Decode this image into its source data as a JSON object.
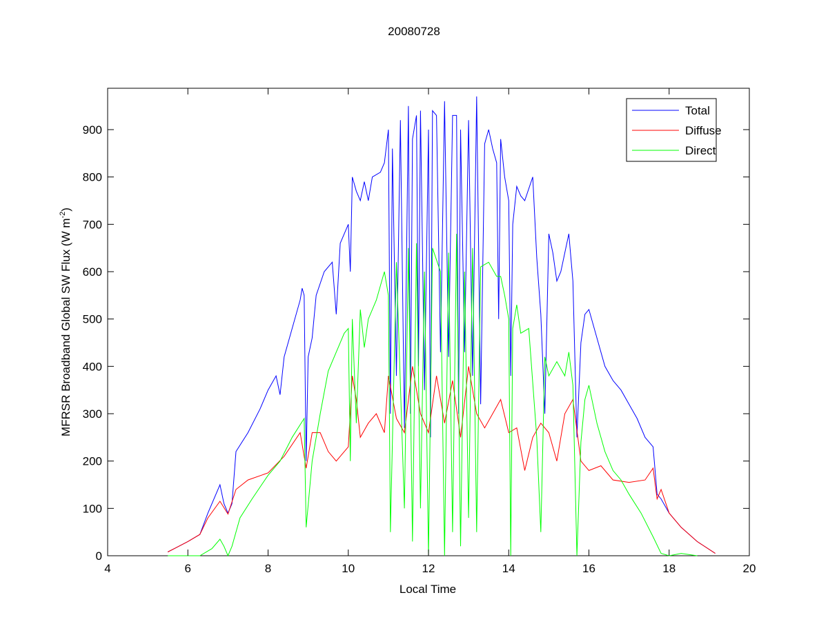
{
  "chart_data": {
    "type": "line",
    "title": "20080728",
    "xlabel": "Local Time",
    "ylabel": "MFRSR Broadband Global SW Flux (W m",
    "ylabel_sup": "-2",
    "ylabel_end": ")",
    "xlim": [
      4,
      20
    ],
    "ylim": [
      0,
      985
    ],
    "xticks": [
      4,
      6,
      8,
      10,
      12,
      14,
      16,
      18,
      20
    ],
    "yticks": [
      0,
      100,
      200,
      300,
      400,
      500,
      600,
      700,
      800,
      900
    ],
    "grid": false,
    "legend_position": "top-right",
    "series": [
      {
        "name": "Total",
        "color": "#0000ff",
        "points": [
          [
            5.5,
            8
          ],
          [
            6.0,
            30
          ],
          [
            6.3,
            45
          ],
          [
            6.5,
            90
          ],
          [
            6.8,
            150
          ],
          [
            6.9,
            110
          ],
          [
            7.0,
            90
          ],
          [
            7.1,
            110
          ],
          [
            7.2,
            220
          ],
          [
            7.5,
            260
          ],
          [
            7.8,
            310
          ],
          [
            8.0,
            350
          ],
          [
            8.2,
            380
          ],
          [
            8.3,
            340
          ],
          [
            8.4,
            420
          ],
          [
            8.6,
            480
          ],
          [
            8.8,
            540
          ],
          [
            8.85,
            565
          ],
          [
            8.9,
            550
          ],
          [
            8.95,
            200
          ],
          [
            9.0,
            420
          ],
          [
            9.1,
            460
          ],
          [
            9.2,
            550
          ],
          [
            9.4,
            600
          ],
          [
            9.6,
            620
          ],
          [
            9.7,
            510
          ],
          [
            9.8,
            660
          ],
          [
            10.0,
            700
          ],
          [
            10.05,
            600
          ],
          [
            10.1,
            800
          ],
          [
            10.2,
            770
          ],
          [
            10.3,
            750
          ],
          [
            10.4,
            790
          ],
          [
            10.5,
            750
          ],
          [
            10.6,
            800
          ],
          [
            10.8,
            810
          ],
          [
            10.9,
            830
          ],
          [
            11.0,
            900
          ],
          [
            11.05,
            300
          ],
          [
            11.1,
            860
          ],
          [
            11.2,
            380
          ],
          [
            11.3,
            920
          ],
          [
            11.4,
            270
          ],
          [
            11.5,
            950
          ],
          [
            11.55,
            300
          ],
          [
            11.6,
            880
          ],
          [
            11.7,
            930
          ],
          [
            11.75,
            400
          ],
          [
            11.8,
            940
          ],
          [
            11.9,
            350
          ],
          [
            12.0,
            900
          ],
          [
            12.05,
            250
          ],
          [
            12.1,
            940
          ],
          [
            12.2,
            930
          ],
          [
            12.3,
            430
          ],
          [
            12.4,
            960
          ],
          [
            12.5,
            420
          ],
          [
            12.6,
            930
          ],
          [
            12.7,
            930
          ],
          [
            12.75,
            300
          ],
          [
            12.8,
            900
          ],
          [
            12.9,
            430
          ],
          [
            13.0,
            920
          ],
          [
            13.1,
            380
          ],
          [
            13.2,
            970
          ],
          [
            13.3,
            320
          ],
          [
            13.4,
            870
          ],
          [
            13.5,
            900
          ],
          [
            13.6,
            860
          ],
          [
            13.7,
            830
          ],
          [
            13.75,
            500
          ],
          [
            13.8,
            880
          ],
          [
            13.9,
            800
          ],
          [
            14.0,
            750
          ],
          [
            14.05,
            380
          ],
          [
            14.1,
            700
          ],
          [
            14.2,
            780
          ],
          [
            14.3,
            760
          ],
          [
            14.4,
            750
          ],
          [
            14.6,
            800
          ],
          [
            14.7,
            630
          ],
          [
            14.8,
            510
          ],
          [
            14.9,
            300
          ],
          [
            15.0,
            680
          ],
          [
            15.1,
            640
          ],
          [
            15.2,
            580
          ],
          [
            15.3,
            600
          ],
          [
            15.4,
            640
          ],
          [
            15.5,
            680
          ],
          [
            15.6,
            580
          ],
          [
            15.7,
            250
          ],
          [
            15.8,
            450
          ],
          [
            15.9,
            510
          ],
          [
            16.0,
            520
          ],
          [
            16.2,
            460
          ],
          [
            16.4,
            400
          ],
          [
            16.6,
            370
          ],
          [
            16.8,
            350
          ],
          [
            17.0,
            320
          ],
          [
            17.2,
            290
          ],
          [
            17.4,
            250
          ],
          [
            17.6,
            230
          ],
          [
            17.7,
            130
          ],
          [
            17.8,
            120
          ],
          [
            18.0,
            90
          ],
          [
            18.3,
            60
          ],
          [
            18.7,
            30
          ],
          [
            19.15,
            5
          ]
        ]
      },
      {
        "name": "Diffuse",
        "color": "#ff0000",
        "points": [
          [
            5.5,
            8
          ],
          [
            6.0,
            30
          ],
          [
            6.3,
            45
          ],
          [
            6.5,
            80
          ],
          [
            6.8,
            115
          ],
          [
            7.0,
            88
          ],
          [
            7.2,
            140
          ],
          [
            7.5,
            160
          ],
          [
            8.0,
            175
          ],
          [
            8.4,
            210
          ],
          [
            8.8,
            260
          ],
          [
            8.95,
            185
          ],
          [
            9.1,
            260
          ],
          [
            9.3,
            260
          ],
          [
            9.5,
            220
          ],
          [
            9.7,
            200
          ],
          [
            10.0,
            230
          ],
          [
            10.1,
            380
          ],
          [
            10.2,
            330
          ],
          [
            10.3,
            250
          ],
          [
            10.5,
            280
          ],
          [
            10.7,
            300
          ],
          [
            10.9,
            260
          ],
          [
            11.0,
            380
          ],
          [
            11.2,
            290
          ],
          [
            11.4,
            260
          ],
          [
            11.6,
            400
          ],
          [
            11.8,
            300
          ],
          [
            12.0,
            260
          ],
          [
            12.2,
            380
          ],
          [
            12.4,
            280
          ],
          [
            12.6,
            370
          ],
          [
            12.8,
            250
          ],
          [
            13.0,
            400
          ],
          [
            13.2,
            300
          ],
          [
            13.4,
            270
          ],
          [
            13.6,
            300
          ],
          [
            13.8,
            330
          ],
          [
            14.0,
            260
          ],
          [
            14.2,
            270
          ],
          [
            14.4,
            180
          ],
          [
            14.6,
            250
          ],
          [
            14.8,
            280
          ],
          [
            15.0,
            260
          ],
          [
            15.2,
            200
          ],
          [
            15.4,
            300
          ],
          [
            15.6,
            330
          ],
          [
            15.8,
            200
          ],
          [
            16.0,
            180
          ],
          [
            16.3,
            190
          ],
          [
            16.6,
            160
          ],
          [
            17.0,
            155
          ],
          [
            17.4,
            160
          ],
          [
            17.6,
            185
          ],
          [
            17.7,
            120
          ],
          [
            17.8,
            140
          ],
          [
            18.0,
            90
          ],
          [
            18.3,
            60
          ],
          [
            18.7,
            30
          ],
          [
            19.15,
            5
          ]
        ]
      },
      {
        "name": "Direct",
        "color": "#00ff00",
        "points": [
          [
            5.5,
            0
          ],
          [
            6.3,
            0
          ],
          [
            6.6,
            15
          ],
          [
            6.8,
            35
          ],
          [
            6.9,
            20
          ],
          [
            7.0,
            0
          ],
          [
            7.1,
            20
          ],
          [
            7.3,
            80
          ],
          [
            7.6,
            120
          ],
          [
            8.0,
            170
          ],
          [
            8.3,
            200
          ],
          [
            8.6,
            250
          ],
          [
            8.9,
            290
          ],
          [
            8.95,
            60
          ],
          [
            9.1,
            200
          ],
          [
            9.3,
            300
          ],
          [
            9.5,
            390
          ],
          [
            9.7,
            430
          ],
          [
            9.9,
            470
          ],
          [
            10.0,
            480
          ],
          [
            10.05,
            200
          ],
          [
            10.1,
            500
          ],
          [
            10.2,
            280
          ],
          [
            10.3,
            520
          ],
          [
            10.4,
            440
          ],
          [
            10.5,
            500
          ],
          [
            10.7,
            540
          ],
          [
            10.9,
            600
          ],
          [
            11.0,
            550
          ],
          [
            11.05,
            50
          ],
          [
            11.2,
            620
          ],
          [
            11.4,
            100
          ],
          [
            11.5,
            650
          ],
          [
            11.6,
            30
          ],
          [
            11.7,
            660
          ],
          [
            11.8,
            100
          ],
          [
            11.9,
            600
          ],
          [
            12.0,
            0
          ],
          [
            12.1,
            650
          ],
          [
            12.3,
            600
          ],
          [
            12.4,
            0
          ],
          [
            12.5,
            640
          ],
          [
            12.6,
            50
          ],
          [
            12.7,
            680
          ],
          [
            12.8,
            20
          ],
          [
            12.9,
            600
          ],
          [
            13.0,
            80
          ],
          [
            13.1,
            650
          ],
          [
            13.2,
            50
          ],
          [
            13.3,
            610
          ],
          [
            13.5,
            620
          ],
          [
            13.7,
            590
          ],
          [
            13.8,
            590
          ],
          [
            13.9,
            550
          ],
          [
            14.0,
            500
          ],
          [
            14.05,
            0
          ],
          [
            14.1,
            480
          ],
          [
            14.2,
            530
          ],
          [
            14.3,
            470
          ],
          [
            14.5,
            480
          ],
          [
            14.7,
            250
          ],
          [
            14.8,
            50
          ],
          [
            14.9,
            420
          ],
          [
            15.0,
            380
          ],
          [
            15.2,
            410
          ],
          [
            15.4,
            380
          ],
          [
            15.5,
            430
          ],
          [
            15.6,
            360
          ],
          [
            15.7,
            0
          ],
          [
            15.8,
            240
          ],
          [
            15.9,
            330
          ],
          [
            16.0,
            360
          ],
          [
            16.2,
            280
          ],
          [
            16.4,
            220
          ],
          [
            16.6,
            180
          ],
          [
            16.8,
            160
          ],
          [
            17.0,
            130
          ],
          [
            17.3,
            90
          ],
          [
            17.6,
            40
          ],
          [
            17.8,
            5
          ],
          [
            18.0,
            0
          ],
          [
            18.3,
            5
          ],
          [
            18.7,
            0
          ]
        ]
      }
    ]
  }
}
